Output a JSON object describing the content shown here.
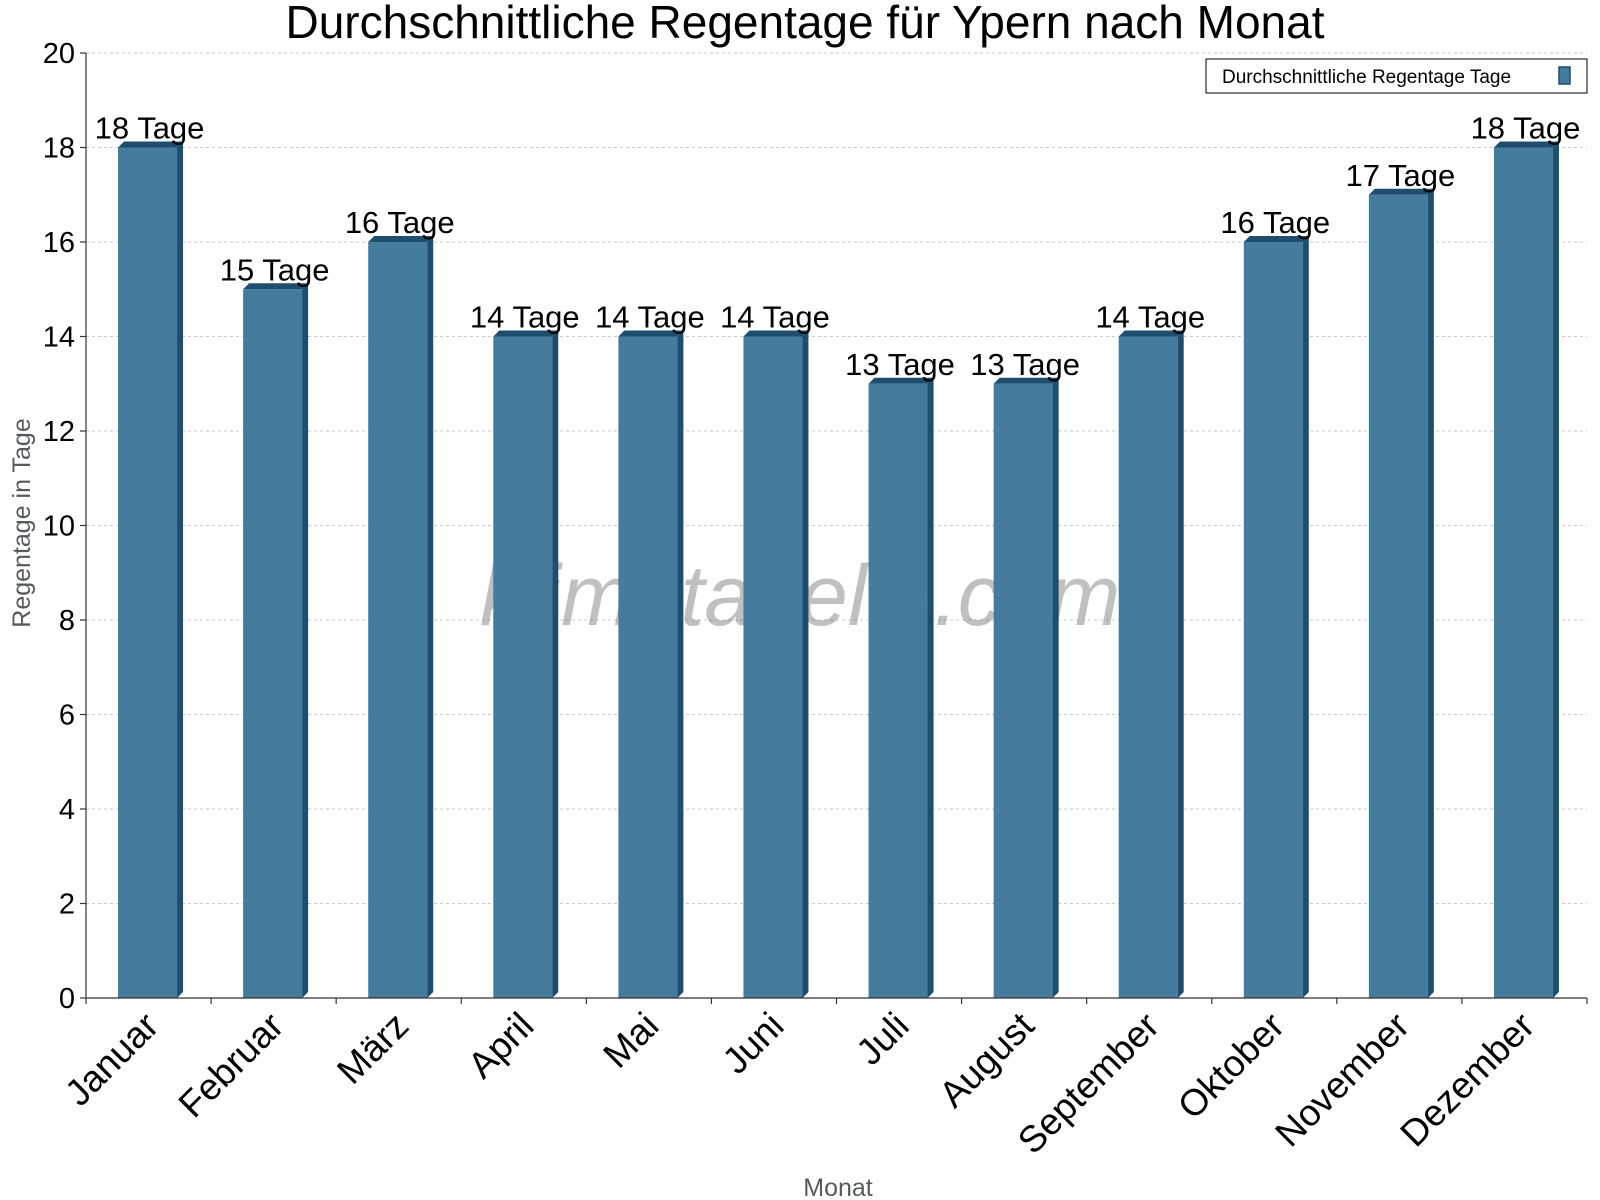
{
  "watermark": "klimatabelle.com",
  "colors": {
    "bar_front": "#457b9d",
    "bar_side": "#1d4e6e",
    "bar_top": "#1d4e6e"
  },
  "chart_data": {
    "type": "bar",
    "title": "Durchschnittliche Regentage für Ypern nach Monat",
    "xlabel": "Monat",
    "ylabel": "Regentage in Tage",
    "ylim": [
      0,
      20
    ],
    "yticks": [
      0,
      2,
      4,
      6,
      8,
      10,
      12,
      14,
      16,
      18,
      20
    ],
    "grid": true,
    "legend_position": "top-right",
    "categories": [
      "Januar",
      "Februar",
      "März",
      "April",
      "Mai",
      "Juni",
      "Juli",
      "August",
      "September",
      "Oktober",
      "November",
      "Dezember"
    ],
    "series": [
      {
        "name": "Durchschnittliche Regentage Tage",
        "values": [
          18,
          15,
          16,
          14,
          14,
          14,
          13,
          13,
          14,
          16,
          17,
          18
        ],
        "labels": [
          "18 Tage",
          "15 Tage",
          "16 Tage",
          "14 Tage",
          "14 Tage",
          "14 Tage",
          "13 Tage",
          "13 Tage",
          "14 Tage",
          "16 Tage",
          "17 Tage",
          "18 Tage"
        ]
      }
    ]
  }
}
